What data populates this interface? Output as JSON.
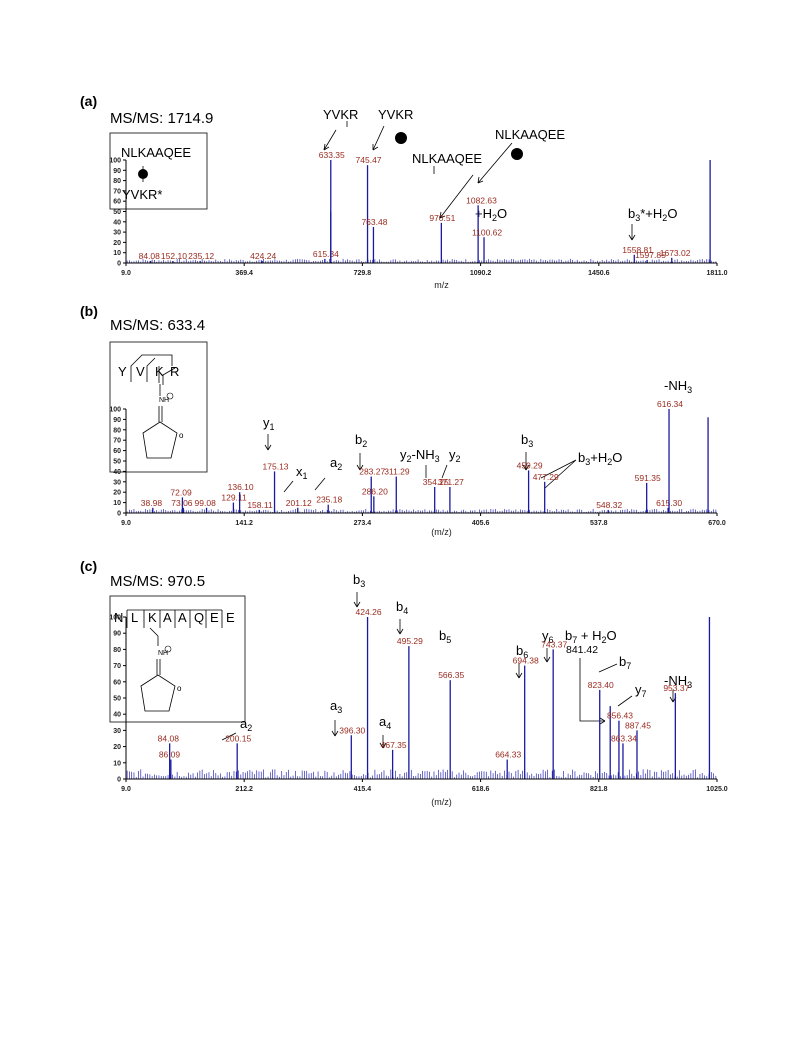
{
  "colors": {
    "spectrum": "#1a1aa0",
    "peak_label": "#9a2a1e",
    "text": "#000000"
  },
  "chart_data": [
    {
      "type": "bar",
      "panel": "(a)",
      "title": "MS/MS:  1714.9",
      "xlabel": "m/z",
      "xlim": [
        9.0,
        1811.0
      ],
      "ylim": [
        0,
        100
      ],
      "xticks": [
        "9.0",
        "369.4",
        "729.8",
        "1090.2",
        "1450.6",
        "1811.0"
      ],
      "yticks": [
        "0",
        "10",
        "20",
        "30",
        "40",
        "50",
        "60",
        "70",
        "80",
        "90",
        "100"
      ],
      "inset": [
        "NLKAAQEE",
        "YVKR*"
      ],
      "peaks": [
        {
          "mz": 84.08,
          "y": 2,
          "label": "84.08"
        },
        {
          "mz": 152.1,
          "y": 2,
          "label": "152.10"
        },
        {
          "mz": 235.12,
          "y": 2,
          "label": "235.12"
        },
        {
          "mz": 424.24,
          "y": 2,
          "label": "424.24"
        },
        {
          "mz": 615.34,
          "y": 4,
          "label": "615.34"
        },
        {
          "mz": 633.35,
          "y": 100,
          "label": "633.35"
        },
        {
          "mz": 633.35,
          "y": 50,
          "label": ""
        },
        {
          "mz": 745.47,
          "y": 95,
          "label": "745.47"
        },
        {
          "mz": 763.48,
          "y": 35,
          "label": "763.48"
        },
        {
          "mz": 970.51,
          "y": 39,
          "label": "970.51"
        },
        {
          "mz": 1082.63,
          "y": 56,
          "label": "1082.63"
        },
        {
          "mz": 1100.62,
          "y": 25,
          "label": "1100.62"
        },
        {
          "mz": 1558.81,
          "y": 8,
          "label": "1558.81"
        },
        {
          "mz": 1597.85,
          "y": 3,
          "label": "1597.85"
        },
        {
          "mz": 1673.02,
          "y": 5,
          "label": "1673.02"
        },
        {
          "mz": 1790.0,
          "y": 100,
          "label": ""
        }
      ],
      "annotations": [
        {
          "text": "YVKR",
          "kind": "plain"
        },
        {
          "text": "YVKR",
          "kind": "plain"
        },
        {
          "text": "NLKAAQEE",
          "kind": "plain"
        },
        {
          "text": "NLKAAQEE",
          "kind": "plain"
        },
        {
          "text": "+H2O",
          "kind": "plain"
        },
        {
          "text": "b3*+H2O",
          "kind": "plain"
        }
      ]
    },
    {
      "type": "bar",
      "panel": "(b)",
      "title": "MS/MS:  633.4",
      "xlabel": "(m/z)",
      "xlim": [
        9.0,
        670.0
      ],
      "ylim": [
        0,
        100
      ],
      "xticks": [
        "9.0",
        "141.2",
        "273.4",
        "405.6",
        "537.8",
        "670.0"
      ],
      "yticks": [
        "0",
        "10",
        "20",
        "30",
        "40",
        "50",
        "60",
        "70",
        "80",
        "90",
        "100"
      ],
      "inset": [
        "Y",
        "V",
        "K",
        "R",
        "NH"
      ],
      "peaks": [
        {
          "mz": 38.98,
          "y": 5,
          "label": "38.98"
        },
        {
          "mz": 72.09,
          "y": 15,
          "label": "72.09"
        },
        {
          "mz": 73.06,
          "y": 5,
          "label": "73.06"
        },
        {
          "mz": 99.08,
          "y": 5,
          "label": "99.08"
        },
        {
          "mz": 129.11,
          "y": 10,
          "label": "129.11"
        },
        {
          "mz": 136.1,
          "y": 20,
          "label": "136.10"
        },
        {
          "mz": 158.11,
          "y": 3,
          "label": "158.11"
        },
        {
          "mz": 175.13,
          "y": 40,
          "label": "175.13"
        },
        {
          "mz": 201.12,
          "y": 5,
          "label": "201.12"
        },
        {
          "mz": 235.18,
          "y": 8,
          "label": "235.18"
        },
        {
          "mz": 283.27,
          "y": 35,
          "label": "283.27"
        },
        {
          "mz": 286.2,
          "y": 16,
          "label": "286.20"
        },
        {
          "mz": 311.29,
          "y": 35,
          "label": "311.29"
        },
        {
          "mz": 354.25,
          "y": 25,
          "label": "354.25"
        },
        {
          "mz": 371.27,
          "y": 25,
          "label": "371.27"
        },
        {
          "mz": 459.29,
          "y": 41,
          "label": "459.29"
        },
        {
          "mz": 477.29,
          "y": 30,
          "label": "477.29"
        },
        {
          "mz": 548.32,
          "y": 3,
          "label": "548.32"
        },
        {
          "mz": 591.35,
          "y": 29,
          "label": "591.35"
        },
        {
          "mz": 615.3,
          "y": 5,
          "label": "615.30"
        },
        {
          "mz": 616.34,
          "y": 100,
          "label": "616.34"
        },
        {
          "mz": 660.0,
          "y": 92,
          "label": ""
        }
      ],
      "annotations": [
        {
          "text": "y1",
          "kind": "ion"
        },
        {
          "text": "x1",
          "kind": "ion"
        },
        {
          "text": "a2",
          "kind": "ion"
        },
        {
          "text": "b2",
          "kind": "ion"
        },
        {
          "text": "y2-NH3",
          "kind": "ion"
        },
        {
          "text": "y2",
          "kind": "ion"
        },
        {
          "text": "b3",
          "kind": "ion"
        },
        {
          "text": "b3+H2O",
          "kind": "ion"
        },
        {
          "text": "-NH3",
          "kind": "ion"
        }
      ]
    },
    {
      "type": "bar",
      "panel": "(c)",
      "title": "MS/MS:  970.5",
      "xlabel": "(m/z)",
      "xlim": [
        9.0,
        1025.0
      ],
      "ylim": [
        0,
        100
      ],
      "xticks": [
        "9.0",
        "212.2",
        "415.4",
        "618.6",
        "821.8",
        "1025.0"
      ],
      "yticks": [
        "0",
        "10",
        "20",
        "30",
        "40",
        "50",
        "60",
        "70",
        "80",
        "90",
        "100"
      ],
      "inset": [
        "N",
        "L",
        "K",
        "A",
        "A",
        "Q",
        "E",
        "E",
        "NH"
      ],
      "peaks": [
        {
          "mz": 84.08,
          "y": 22,
          "label": "84.08"
        },
        {
          "mz": 86.09,
          "y": 12,
          "label": "86.09"
        },
        {
          "mz": 200.15,
          "y": 22,
          "label": "200.15"
        },
        {
          "mz": 396.3,
          "y": 27,
          "label": "396.30"
        },
        {
          "mz": 424.26,
          "y": 100,
          "label": "424.26"
        },
        {
          "mz": 467.35,
          "y": 18,
          "label": "467.35"
        },
        {
          "mz": 495.29,
          "y": 82,
          "label": "495.29"
        },
        {
          "mz": 566.35,
          "y": 61,
          "label": "566.35"
        },
        {
          "mz": 664.33,
          "y": 12,
          "label": "664.33"
        },
        {
          "mz": 694.38,
          "y": 70,
          "label": "694.38"
        },
        {
          "mz": 743.37,
          "y": 80,
          "label": "743.37"
        },
        {
          "mz": 823.4,
          "y": 55,
          "label": "823.40"
        },
        {
          "mz": 841.42,
          "y": 45,
          "label": ""
        },
        {
          "mz": 856.43,
          "y": 36,
          "label": "856.43"
        },
        {
          "mz": 863.34,
          "y": 22,
          "label": "863.34"
        },
        {
          "mz": 887.45,
          "y": 30,
          "label": "887.45"
        },
        {
          "mz": 953.37,
          "y": 53,
          "label": "953.37"
        },
        {
          "mz": 1012.0,
          "y": 100,
          "label": ""
        }
      ],
      "annotations": [
        {
          "text": "a2",
          "kind": "ion"
        },
        {
          "text": "a3",
          "kind": "ion"
        },
        {
          "text": "b3",
          "kind": "ion"
        },
        {
          "text": "a4",
          "kind": "ion"
        },
        {
          "text": "b4",
          "kind": "ion"
        },
        {
          "text": "b5",
          "kind": "ion"
        },
        {
          "text": "b6",
          "kind": "ion"
        },
        {
          "text": "y6",
          "kind": "ion"
        },
        {
          "text": "b7 + H2O",
          "kind": "ion"
        },
        {
          "text": "841.42",
          "kind": "plain"
        },
        {
          "text": "b7",
          "kind": "ion"
        },
        {
          "text": "y7",
          "kind": "ion"
        },
        {
          "text": "-NH3",
          "kind": "ion"
        }
      ]
    }
  ]
}
